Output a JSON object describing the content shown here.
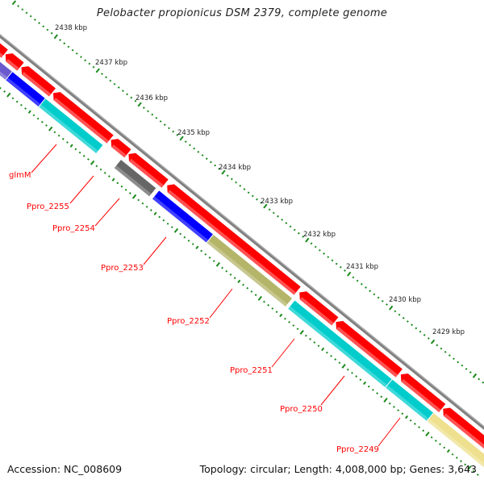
{
  "title": "Pelobacter propionicus DSM 2379, complete genome",
  "footer": {
    "accession": "Accession: NC_008609",
    "summary": "Topology: circular; Length: 4,008,000 bp; Genes: 3,643"
  },
  "colors": {
    "backbone": "#808080",
    "forward_gene": "#ff0000",
    "ruler": "#1a8a1a",
    "label": "#ff0000"
  },
  "ruler": {
    "unit": "kbp",
    "labels": [
      "2438 kbp",
      "2437 kbp",
      "2436 kbp",
      "2435 kbp",
      "2434 kbp",
      "2433 kbp",
      "2432 kbp",
      "2431 kbp",
      "2430 kbp",
      "2429 kbp"
    ],
    "major_kbp": [
      2438,
      2437,
      2436,
      2435,
      2434,
      2433,
      2432,
      2431,
      2430,
      2429
    ],
    "range_kbp": [
      2426.8,
      2439.0
    ]
  },
  "forward_genes": [
    {
      "start": 2438.84,
      "end": 2438.54,
      "color": "#ff0000"
    },
    {
      "start": 2438.52,
      "end": 2438.16,
      "color": "#ff0000"
    },
    {
      "start": 2438.14,
      "end": 2437.4,
      "color": "#ff0000"
    },
    {
      "start": 2437.38,
      "end": 2436.02,
      "color": "#ff0000"
    },
    {
      "start": 2436.0,
      "end": 2435.6,
      "color": "#ff0000"
    },
    {
      "start": 2435.58,
      "end": 2434.71,
      "color": "#ff0000"
    },
    {
      "start": 2434.66,
      "end": 2431.55,
      "color": "#ff0000"
    },
    {
      "start": 2431.5,
      "end": 2430.65,
      "color": "#ff0000"
    },
    {
      "start": 2430.63,
      "end": 2429.12,
      "color": "#ff0000"
    },
    {
      "start": 2429.08,
      "end": 2428.09,
      "color": "#ff0000"
    },
    {
      "start": 2428.07,
      "end": 2426.8,
      "color": "#ff0000"
    }
  ],
  "reverse_genes": [
    {
      "start": 2439.0,
      "end": 2438.22,
      "color": "#6a5acd"
    },
    {
      "start": 2438.22,
      "end": 2437.43,
      "color": "#0000ff"
    },
    {
      "start": 2437.43,
      "end": 2436.05,
      "color": "#00cccc"
    },
    {
      "start": 2435.63,
      "end": 2434.78,
      "color": "#666666"
    },
    {
      "start": 2434.72,
      "end": 2433.42,
      "color": "#0000ff"
    },
    {
      "start": 2433.42,
      "end": 2431.53,
      "color": "#b5b56a"
    },
    {
      "start": 2431.48,
      "end": 2429.15,
      "color": "#00cccc"
    },
    {
      "start": 2429.15,
      "end": 2428.16,
      "color": "#00cccc"
    },
    {
      "start": 2428.16,
      "end": 2426.8,
      "color": "#eee08e"
    }
  ],
  "gene_labels": [
    "glmM",
    "Ppro_2255",
    "Ppro_2254",
    "Ppro_2253",
    "Ppro_2252",
    "Ppro_2251",
    "Ppro_2250",
    "Ppro_2249"
  ]
}
